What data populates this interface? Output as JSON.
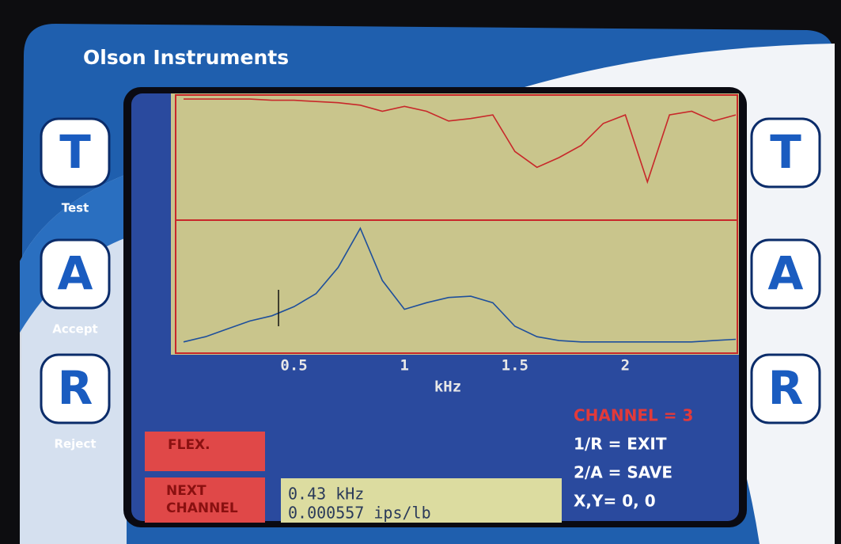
{
  "header": {
    "brand": "Olson Instruments"
  },
  "buttons_left": [
    {
      "letter": "T",
      "caption": "Test"
    },
    {
      "letter": "A",
      "caption": "Accept"
    },
    {
      "letter": "R",
      "caption": "Reject"
    }
  ],
  "buttons_right": [
    {
      "letter": "T"
    },
    {
      "letter": "A"
    },
    {
      "letter": "R"
    }
  ],
  "chart_data": [
    {
      "type": "line",
      "x": [
        0,
        0.1,
        0.2,
        0.3,
        0.4,
        0.5,
        0.6,
        0.7,
        0.8,
        0.9,
        1.0,
        1.1,
        1.2,
        1.3,
        1.4,
        1.5,
        1.6,
        1.7,
        1.8,
        1.9,
        2.0,
        2.1,
        2.2,
        2.3,
        2.4,
        2.5
      ],
      "series": [
        {
          "color": "#c8282a",
          "values": [
            0.98,
            0.98,
            0.98,
            0.98,
            0.97,
            0.97,
            0.96,
            0.95,
            0.93,
            0.88,
            0.92,
            0.88,
            0.8,
            0.82,
            0.85,
            0.55,
            0.42,
            0.5,
            0.6,
            0.78,
            0.85,
            0.3,
            0.85,
            0.88,
            0.8,
            0.85
          ]
        }
      ],
      "xlim": [
        0,
        2.5
      ],
      "ylim": [
        0,
        1
      ]
    },
    {
      "type": "line",
      "x": [
        0,
        0.1,
        0.2,
        0.3,
        0.4,
        0.5,
        0.6,
        0.7,
        0.8,
        0.9,
        1.0,
        1.1,
        1.2,
        1.3,
        1.4,
        1.5,
        1.6,
        1.7,
        1.8,
        1.9,
        2.0,
        2.1,
        2.2,
        2.3,
        2.4,
        2.5
      ],
      "series": [
        {
          "color": "#1e4f9c",
          "values": [
            0.08,
            0.12,
            0.18,
            0.24,
            0.28,
            0.35,
            0.45,
            0.65,
            0.95,
            0.55,
            0.33,
            0.38,
            0.42,
            0.43,
            0.38,
            0.2,
            0.12,
            0.09,
            0.08,
            0.08,
            0.08,
            0.08,
            0.08,
            0.08,
            0.09,
            0.1
          ]
        }
      ],
      "xlim": [
        0,
        2.5
      ],
      "ylim": [
        0,
        1
      ],
      "xticks": [
        0.5,
        1,
        1.5,
        2
      ],
      "xlabel": "kHz",
      "cursor_x": 0.43
    }
  ],
  "softkeys": [
    "FLEX.",
    "NEXT CHANNEL"
  ],
  "readout": [
    "0.43 kHz",
    "0.000557 ips/lb"
  ],
  "status": {
    "channel": "CHANNEL = 3",
    "lines": [
      "1/R = EXIT",
      "2/A = SAVE",
      "X,Y= 0, 0"
    ]
  }
}
